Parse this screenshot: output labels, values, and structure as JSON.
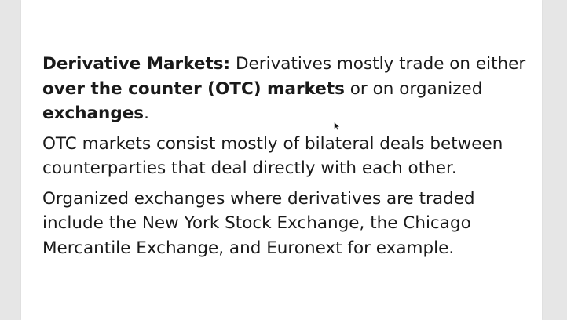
{
  "slide": {
    "para1": {
      "lead": "Derivative Markets:",
      "text1": " Derivatives mostly trade on either ",
      "bold1": "over the counter (OTC) markets",
      "text2": " or on organized ",
      "bold2": "exchanges",
      "text3": "."
    },
    "para2": "OTC markets consist mostly of bilateral deals between counterparties that deal directly with each other.",
    "para3": "Organized exchanges where derivatives are traded include the New York Stock Exchange, the Chicago Mercantile Exchange, and Euronext for example."
  },
  "cursor_icon": "mouse-pointer-icon"
}
